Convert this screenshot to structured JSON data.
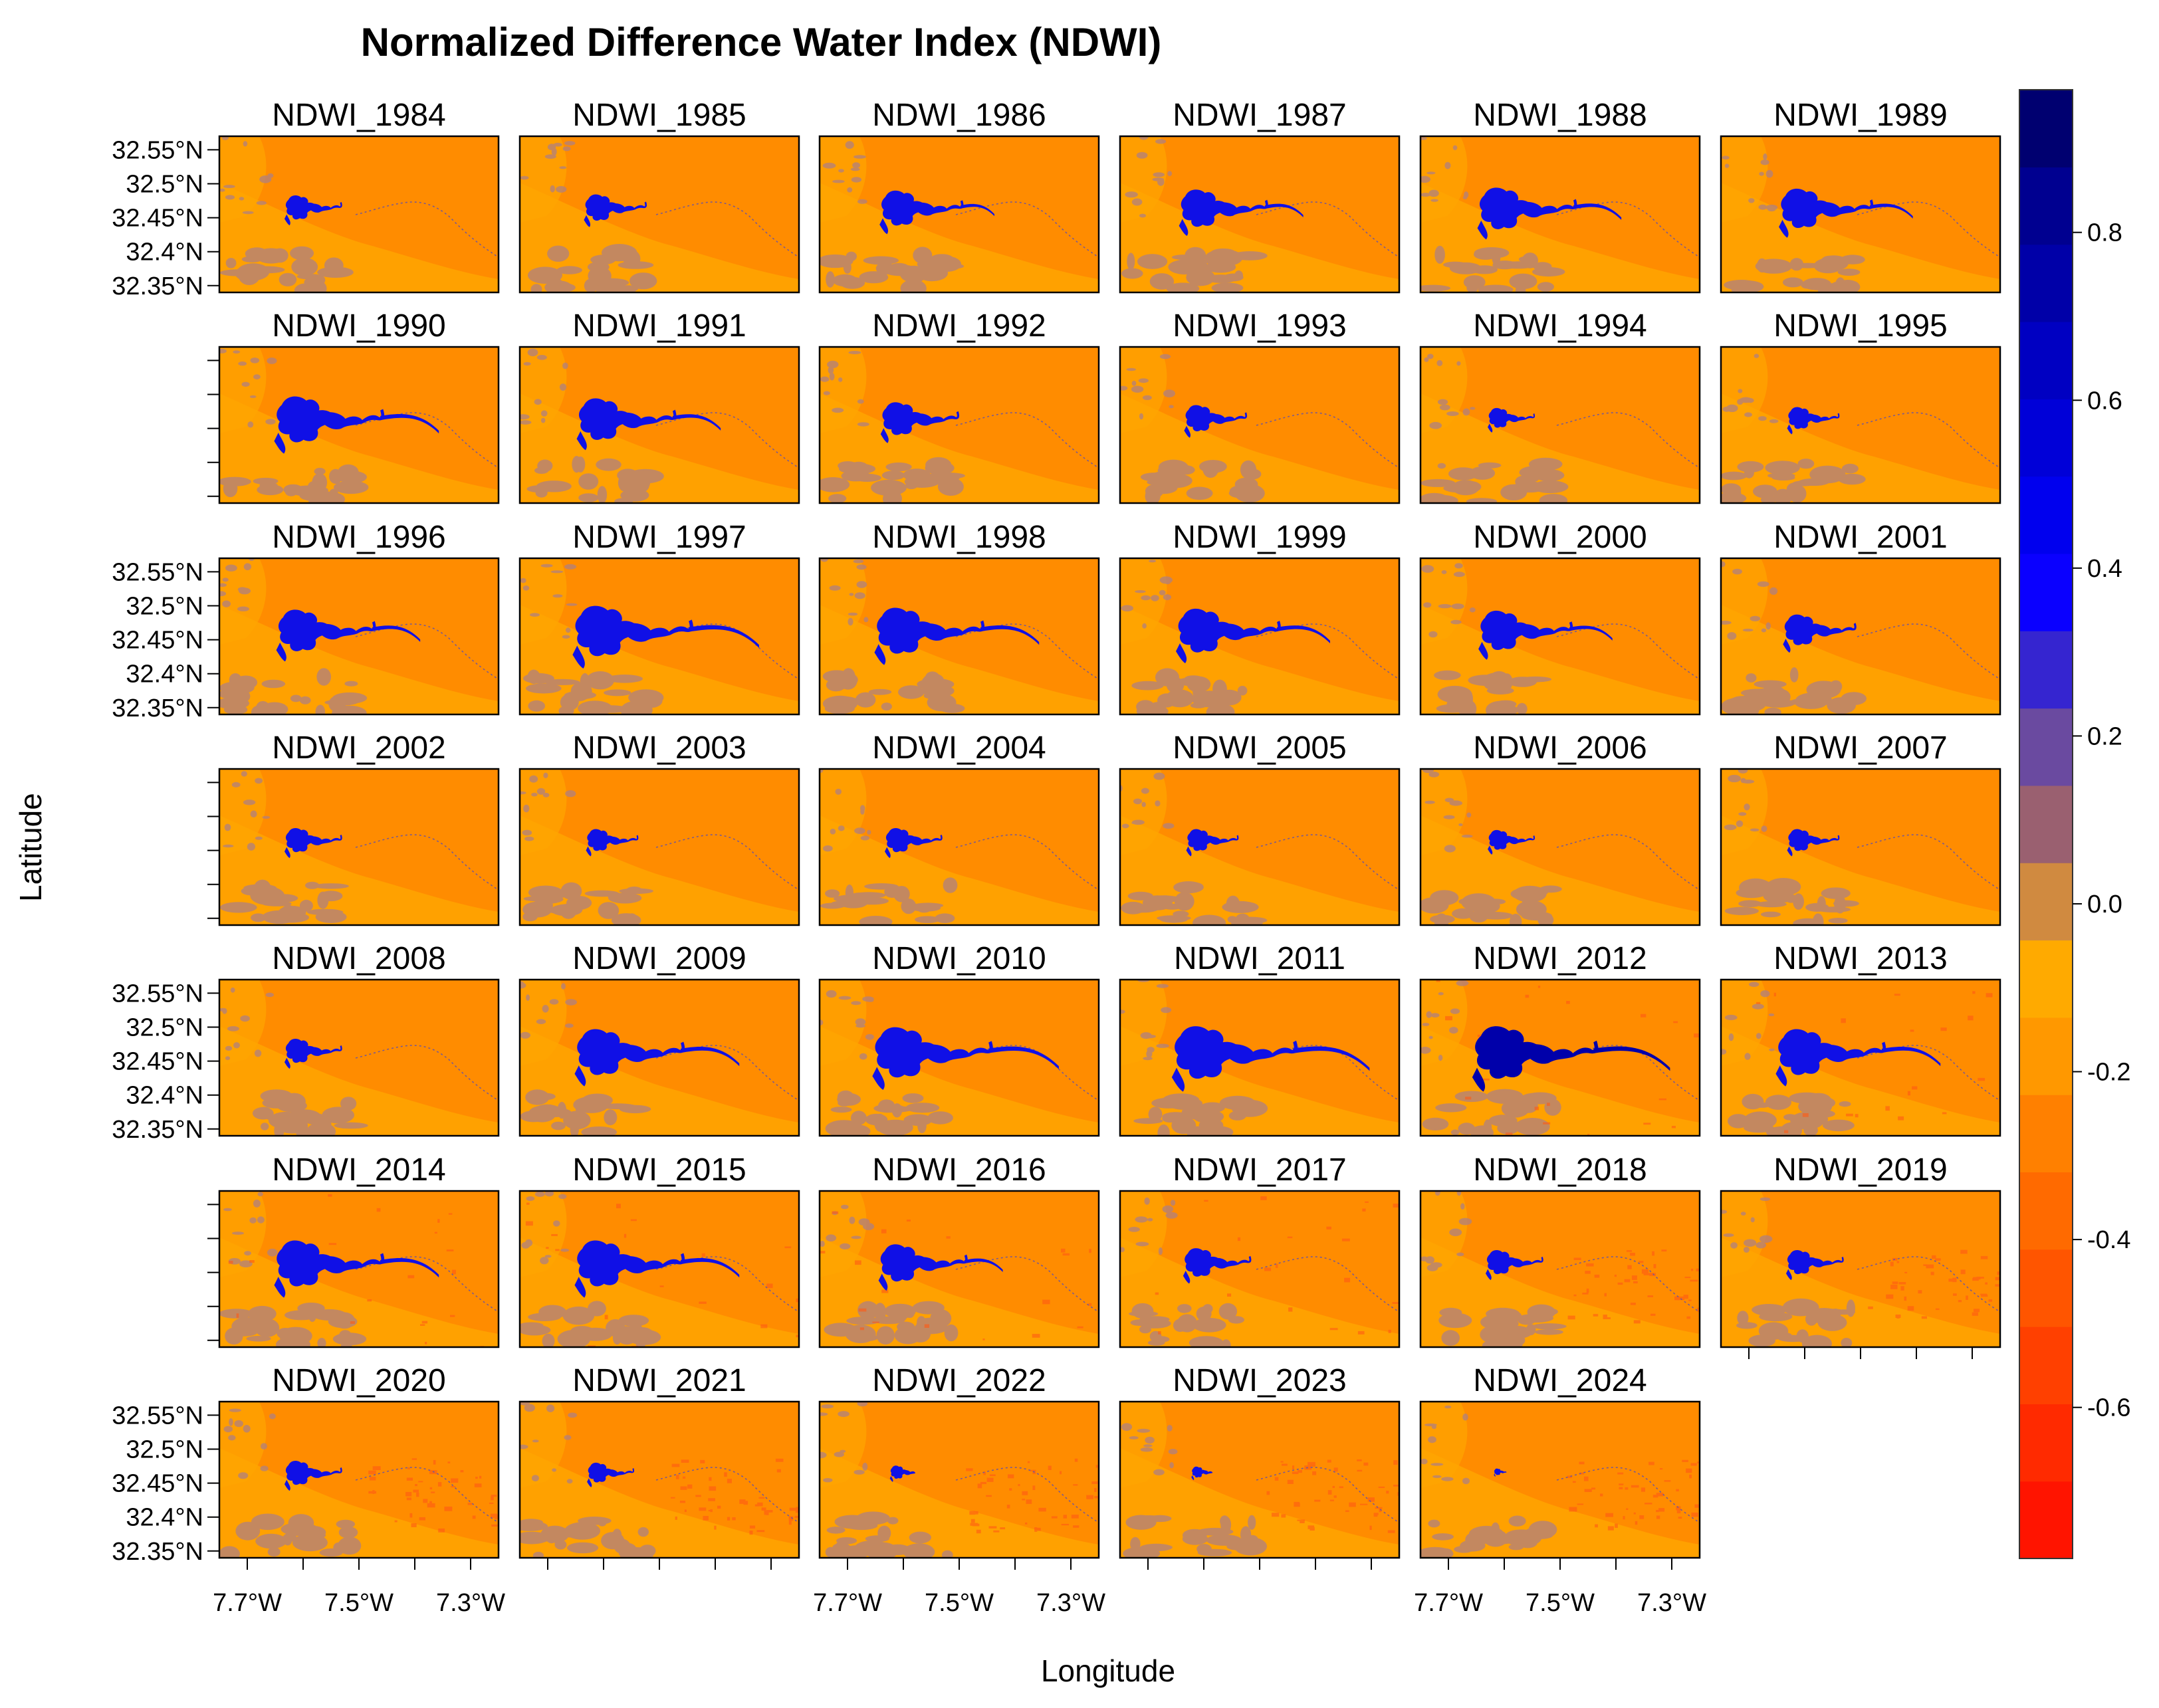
{
  "chart_data": {
    "type": "heatmap",
    "title": "Normalized Difference Water Index (NDWI)",
    "xlabel": "Longitude",
    "ylabel": "Latitude",
    "panels": [
      "NDWI_1984",
      "NDWI_1985",
      "NDWI_1986",
      "NDWI_1987",
      "NDWI_1988",
      "NDWI_1989",
      "NDWI_1990",
      "NDWI_1991",
      "NDWI_1992",
      "NDWI_1993",
      "NDWI_1994",
      "NDWI_1995",
      "NDWI_1996",
      "NDWI_1997",
      "NDWI_1998",
      "NDWI_1999",
      "NDWI_2000",
      "NDWI_2001",
      "NDWI_2002",
      "NDWI_2003",
      "NDWI_2004",
      "NDWI_2005",
      "NDWI_2006",
      "NDWI_2007",
      "NDWI_2008",
      "NDWI_2009",
      "NDWI_2010",
      "NDWI_2011",
      "NDWI_2012",
      "NDWI_2013",
      "NDWI_2014",
      "NDWI_2015",
      "NDWI_2016",
      "NDWI_2017",
      "NDWI_2018",
      "NDWI_2019",
      "NDWI_2020",
      "NDWI_2021",
      "NDWI_2022",
      "NDWI_2023",
      "NDWI_2024"
    ],
    "columns": 6,
    "lake_extent": [
      0.55,
      0.6,
      0.8,
      0.85,
      0.95,
      0.9,
      1.05,
      0.95,
      0.75,
      0.6,
      0.45,
      0.5,
      0.95,
      1.15,
      1.05,
      1.0,
      0.9,
      0.7,
      0.55,
      0.5,
      0.55,
      0.5,
      0.45,
      0.5,
      0.55,
      1.05,
      1.15,
      1.2,
      1.2,
      1.05,
      1.05,
      1.05,
      0.85,
      0.65,
      0.55,
      0.55,
      0.55,
      0.45,
      0.3,
      0.25,
      0.15
    ],
    "y_ticks": [
      "32.55°N",
      "32.5°N",
      "32.45°N",
      "32.4°N",
      "32.35°N"
    ],
    "y_tick_values": [
      32.55,
      32.5,
      32.45,
      32.4,
      32.35
    ],
    "x_ticks": [
      "7.7°W",
      "7.5°W",
      "7.3°W"
    ],
    "x_tick_values": [
      -7.7,
      -7.5,
      -7.3
    ],
    "xlim": [
      -7.75,
      -7.25
    ],
    "ylim": [
      32.34,
      32.57
    ],
    "colorbar_ticks": [
      "0.8",
      "0.6",
      "0.4",
      "0.2",
      "0.0",
      "-0.2",
      "-0.4",
      "-0.6"
    ],
    "colorbar_tick_values": [
      0.8,
      0.6,
      0.4,
      0.2,
      0.0,
      -0.2,
      -0.4,
      -0.6
    ],
    "colorbar_range": [
      -0.78,
      0.97
    ],
    "colorbar_colors": [
      "#ff1400",
      "#ff2a00",
      "#ff4000",
      "#ff5500",
      "#ff6a00",
      "#ff8000",
      "#ff9800",
      "#ffaa00",
      "#d08a40",
      "#9a6070",
      "#6a4aa0",
      "#3525d0",
      "#0a00ff",
      "#0000ee",
      "#0000d8",
      "#0000c2",
      "#0000a8",
      "#000090",
      "#000070"
    ],
    "colors": {
      "background_orange": "#ff8c00",
      "light_orange": "#ffa500",
      "dry_mauve": "#b08080",
      "water": "#1010e6",
      "deep_water": "#0000aa",
      "red_orange": "#ff5a14"
    }
  }
}
